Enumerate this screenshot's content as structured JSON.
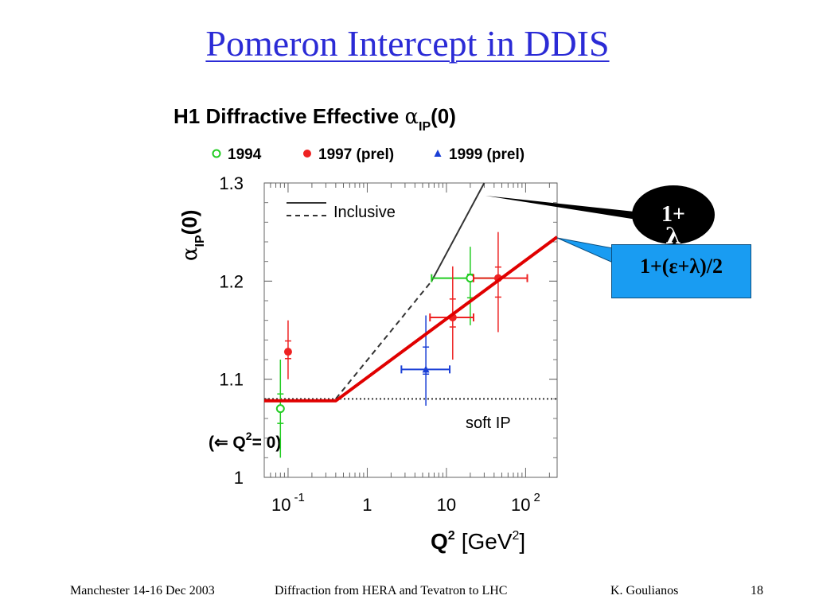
{
  "slide": {
    "title": "Pomeron Intercept in DDIS"
  },
  "chart_data": {
    "type": "scatter",
    "title": "H1 Diffractive Effective αIP(0)",
    "title_main": "H1 Diffractive Effective ",
    "title_alpha": "α",
    "title_sub": "IP",
    "title_tail": "(0)",
    "ylabel_alpha": "α",
    "ylabel_sub": "IP",
    "ylabel_tail": "(0)",
    "xlabel_main": "Q",
    "xlabel_sup": "2",
    "xlabel_unit": "[GeV",
    "xlabel_unit_sup": "2",
    "xlabel_close": "]",
    "x_scale": "log",
    "xlim": [
      0.05,
      250
    ],
    "ylim": [
      1.0,
      1.3
    ],
    "y_ticks": [
      1,
      1.1,
      1.2,
      1.3
    ],
    "y_tick_labels": [
      "1",
      "1.1",
      "1.2",
      "1.3"
    ],
    "x_ticks": [
      {
        "value": 0.1,
        "base": "10",
        "exp": "-1"
      },
      {
        "value": 1,
        "base": "1",
        "exp": ""
      },
      {
        "value": 10,
        "base": "10",
        "exp": ""
      },
      {
        "value": 100,
        "base": "10",
        "exp": "2"
      }
    ],
    "legend": [
      {
        "name": "1994",
        "color": "#22cc22",
        "marker": "open-circle"
      },
      {
        "name": "1997 (prel)",
        "color": "#ee2222",
        "marker": "filled-circle"
      },
      {
        "name": "1999 (prel)",
        "color": "#1a3fd6",
        "marker": "triangle"
      }
    ],
    "series": [
      {
        "name": "1994",
        "color": "#22cc22",
        "marker": "open-circle",
        "points": [
          {
            "x": 0.08,
            "y": 1.07,
            "ylo": 1.02,
            "yhi": 1.12
          },
          {
            "x": 20,
            "y": 1.203,
            "xlo": 6.5,
            "xhi": 45,
            "ylo": 1.155,
            "yhi": 1.235
          }
        ]
      },
      {
        "name": "1997 (prel)",
        "color": "#ee2222",
        "marker": "filled-circle",
        "points": [
          {
            "x": 0.1,
            "y": 1.128,
            "ylo": 1.1,
            "yhi": 1.16
          },
          {
            "x": 12,
            "y": 1.163,
            "xlo": 6.2,
            "xhi": 22,
            "ylo": 1.12,
            "yhi": 1.215
          },
          {
            "x": 45,
            "y": 1.203,
            "xlo": 22,
            "xhi": 105,
            "ylo": 1.148,
            "yhi": 1.25
          }
        ]
      },
      {
        "name": "1999 (prel)",
        "color": "#1a3fd6",
        "marker": "triangle",
        "points": [
          {
            "x": 5.5,
            "y": 1.11,
            "xlo": 2.7,
            "xhi": 11,
            "ylo": 1.073,
            "yhi": 1.165
          }
        ]
      }
    ],
    "inclusive_label": "Inclusive",
    "inclusive_line": [
      {
        "x": 0.4,
        "y": 1.08
      },
      {
        "x": 6.5,
        "y": 1.2
      },
      {
        "x": 30,
        "y": 1.3
      }
    ],
    "soft_ip_label": "soft IP",
    "soft_ip_y": 1.08,
    "q2_zero_label": "(⇐ Q",
    "q2_zero_sup": "2",
    "q2_zero_tail": "= 0)",
    "overlay_line": [
      {
        "x": 0.05,
        "y": 1.078
      },
      {
        "x": 0.4,
        "y": 1.078
      },
      {
        "x": 250,
        "y": 1.245
      }
    ]
  },
  "callouts": {
    "lambda_line1": "1+",
    "lambda_line2": "λ",
    "eps_lambda": "1+(ε+λ)/2",
    "colors": {
      "black_bubble": "#000000",
      "blue_box": "#199cf2",
      "red_line": "#e00000"
    }
  },
  "footer": {
    "venue": "Manchester 14-16 Dec 2003",
    "talk": "Diffraction from HERA and Tevatron to LHC",
    "author": "K. Goulianos",
    "page": "18"
  }
}
